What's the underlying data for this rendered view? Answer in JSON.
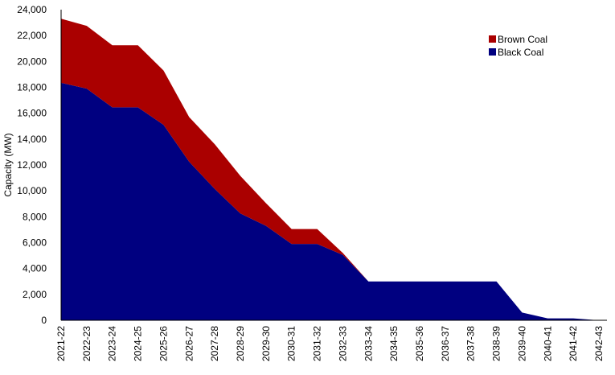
{
  "chart_data": {
    "type": "area",
    "stacked": true,
    "title": "",
    "xlabel": "",
    "ylabel": "Capacity (MW)",
    "ylim": [
      0,
      24000
    ],
    "yticks": [
      "0",
      "2,000",
      "4,000",
      "6,000",
      "8,000",
      "10,000",
      "12,000",
      "14,000",
      "16,000",
      "18,000",
      "20,000",
      "22,000",
      "24,000"
    ],
    "ytick_values": [
      0,
      2000,
      4000,
      6000,
      8000,
      10000,
      12000,
      14000,
      16000,
      18000,
      20000,
      22000,
      24000
    ],
    "grid": false,
    "legend_position": "top-right",
    "categories": [
      "2021-22",
      "2022-23",
      "2023-24",
      "2024-25",
      "2025-26",
      "2026-27",
      "2027-28",
      "2028-29",
      "2029-30",
      "2030-31",
      "2031-32",
      "2032-33",
      "2033-34",
      "2034-35",
      "2035-36",
      "2036-37",
      "2037-38",
      "2038-39",
      "2039-40",
      "2040-41",
      "2041-42",
      "2042-43"
    ],
    "series": [
      {
        "name": "Black Coal",
        "color": "#000080",
        "values": [
          18350,
          17900,
          16450,
          16450,
          15100,
          12250,
          10150,
          8250,
          7300,
          5900,
          5900,
          5050,
          3000,
          3000,
          3000,
          3000,
          3000,
          3000,
          600,
          150,
          150,
          0
        ]
      },
      {
        "name": "Brown Coal",
        "color": "#AA0000",
        "values": [
          4950,
          4850,
          4800,
          4800,
          4200,
          3450,
          3450,
          2900,
          1750,
          1150,
          1150,
          150,
          0,
          0,
          0,
          0,
          0,
          0,
          0,
          0,
          0,
          0
        ]
      }
    ],
    "legend": [
      {
        "label": "Brown Coal",
        "color": "#AA0000"
      },
      {
        "label": "Black Coal",
        "color": "#000080"
      }
    ]
  }
}
